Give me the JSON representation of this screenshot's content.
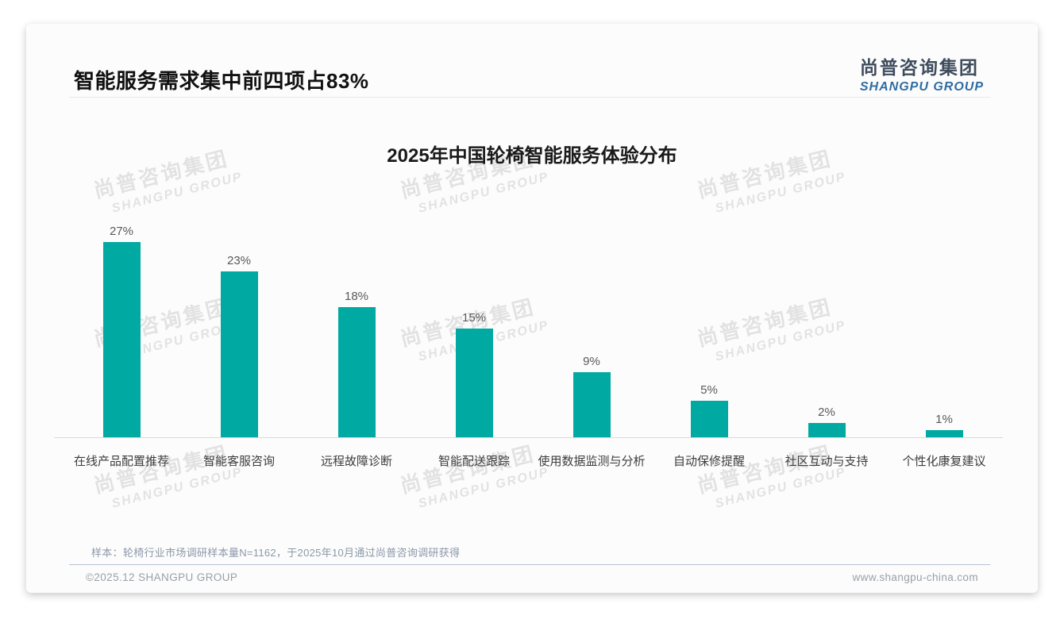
{
  "header": {
    "title": "智能服务需求集中前四项占83%",
    "logo": {
      "cn": "尚普咨询集团",
      "en": "SHANGPU GROUP"
    }
  },
  "chart_data": {
    "type": "bar",
    "title": "2025年中国轮椅智能服务体验分布",
    "categories": [
      "在线产品配置推荐",
      "智能客服咨询",
      "远程故障诊断",
      "智能配送跟踪",
      "使用数据监测与分析",
      "自动保修提醒",
      "社区互动与支持",
      "个性化康复建议"
    ],
    "values": [
      27,
      23,
      18,
      15,
      9,
      5,
      2,
      1
    ],
    "value_labels": [
      "27%",
      "23%",
      "18%",
      "15%",
      "9%",
      "5%",
      "2%",
      "1%"
    ],
    "xlabel": "",
    "ylabel": "",
    "ylim": [
      0,
      30
    ],
    "grid": false,
    "legend": "none",
    "bar_color": "#00A9A2"
  },
  "watermark": {
    "cn": "尚普咨询集团",
    "en": "SHANGPU GROUP"
  },
  "footer": {
    "note": "样本：轮椅行业市场调研样本量N=1162，于2025年10月通过尚普咨询调研获得",
    "left": "©2025.12 SHANGPU GROUP",
    "right": "www.shangpu-china.com"
  }
}
